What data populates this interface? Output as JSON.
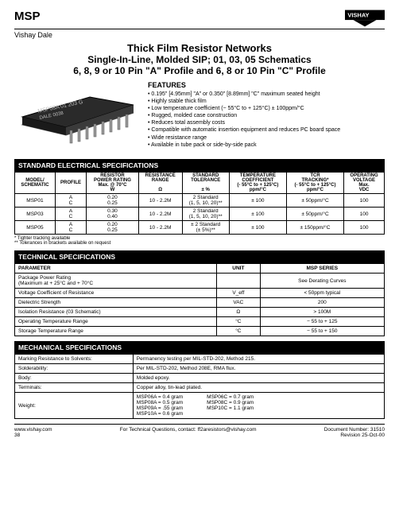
{
  "header": {
    "msp": "MSP",
    "brand": "Vishay Dale"
  },
  "title": {
    "main": "Thick Film Resistor Networks",
    "sub1": "Single-In-Line, Molded SIP; 01, 03, 05 Schematics",
    "sub2": "6, 8, 9 or 10 Pin \"A\" Profile and 6, 8 or 10 Pin \"C\" Profile"
  },
  "features": {
    "heading": "FEATURES",
    "items": [
      "0.195\" [4.95mm] \"A\" or 0.350\" [8.89mm] \"C\" maximum seated height",
      "Highly stable thick film",
      "Low temperature coefficient (− 55°C to + 125°C) ± 100ppm/°C",
      "Rugged, molded case construction",
      "Reduces total assembly costs",
      "Compatible with automatic insertion equipment and reduces PC board space",
      "Wide resistance range",
      "Available in tube pack or side-by-side pack"
    ]
  },
  "elec": {
    "heading": "STANDARD ELECTRICAL SPECIFICATIONS",
    "cols": [
      "MODEL/\nSCHEMATIC",
      "PROFILE",
      "RESISTOR\nPOWER RATING\nMax. @ 70°C\nW",
      "RESISTANCE\nRANGE\n\nΩ",
      "STANDARD\nTOLERANCE\n\n± %",
      "TEMPERATURE\nCOEFFICIENT\n(- 55°C to + 125°C)\nppm/°C",
      "TCR\nTRACKING*\n(- 55°C to + 125°C)\nppm/°C",
      "OPERATING\nVOLTAGE\nMax.\nVDC"
    ],
    "rows": [
      {
        "model": "MSP01",
        "profile": "A\nC",
        "power": "0.20\n0.25",
        "range": "10 - 2.2M",
        "tol": "2 Standard\n(1, 5, 10, 20)**",
        "tc": "± 100",
        "tcr": "± 50ppm/°C",
        "volt": "100"
      },
      {
        "model": "MSP03",
        "profile": "A\nC",
        "power": "0.30\n0.40",
        "range": "10 - 2.2M",
        "tol": "2 Standard\n(1, 5, 10, 20)**",
        "tc": "± 100",
        "tcr": "± 50ppm/°C",
        "volt": "100"
      },
      {
        "model": "MSP05",
        "profile": "A\nC",
        "power": "0.20\n0.25",
        "range": "10 - 2.2M",
        "tol": "± 2 Standard\n(± 5%)**",
        "tc": "± 100",
        "tcr": "± 150ppm/°C",
        "volt": "100"
      }
    ],
    "note1": "*  Tighter tracking available",
    "note2": "** Tolerances in brackets available on request"
  },
  "tech": {
    "heading": "TECHNICAL SPECIFICATIONS",
    "cols": [
      "PARAMETER",
      "UNIT",
      "MSP SERIES"
    ],
    "rows": [
      {
        "p": "Package Power Rating\n(Maximum at + 25°C and + 70°C",
        "u": "",
        "v": "See Derating Curves"
      },
      {
        "p": "Voltage Coefficient of Resistance",
        "u": "V_eff",
        "v": "< 50ppm typical"
      },
      {
        "p": "Dielectric Strength",
        "u": "VAC",
        "v": "200"
      },
      {
        "p": "Isolation Resistance (03 Schematic)",
        "u": "Ω",
        "v": "> 100M"
      },
      {
        "p": "Operating Temperature Range",
        "u": "°C",
        "v": "− 55 to + 125"
      },
      {
        "p": "Storage Temperature Range",
        "u": "°C",
        "v": "− 55 to + 150"
      }
    ]
  },
  "mech": {
    "heading": "MECHANICAL SPECIFICATIONS",
    "rows": [
      {
        "p": "Marking Resistance to Solvents:",
        "v": "Permanency testing per MIL-STD-202, Method 215."
      },
      {
        "p": "Solderability:",
        "v": "Per MIL-STD-202, Method 208E, RMA flux."
      },
      {
        "p": "Body:",
        "v": "Molded epoxy."
      },
      {
        "p": "Terminals:",
        "v": "Copper alloy, tin-lead plated."
      }
    ],
    "weight_label": "Weight:",
    "weight_l1": "MSP06A = 0.4 gram",
    "weight_l2": "MSP08A = 0.5 gram",
    "weight_l3": "MSP09A = .55 gram",
    "weight_l4": "MSP10A = 0.6 gram",
    "weight_r1": "MSP06C = 0.7 gram",
    "weight_r2": "MSP08C = 0.9 gram",
    "weight_r3": "MSP10C = 1.1 gram"
  },
  "footer": {
    "url": "www.vishay.com",
    "page": "38",
    "contact": "For Technical Questions, contact: ff2aresistors@vishay.com",
    "doc": "Document Number: 31510",
    "rev": "Revision 25-Oct-00"
  },
  "colors": {
    "black": "#000000",
    "white": "#ffffff"
  }
}
